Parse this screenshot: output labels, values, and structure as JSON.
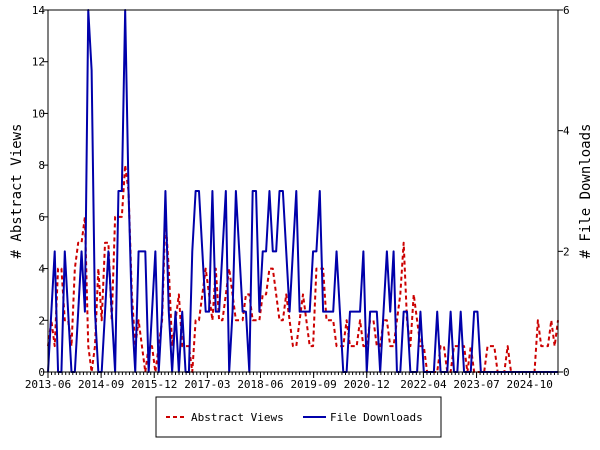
{
  "chart_data": {
    "type": "line",
    "ylabel_left": "# Abstract Views",
    "ylabel_right": "# File Downloads",
    "ylim_left": [
      0,
      14
    ],
    "ylim_right": [
      0,
      6
    ],
    "yticks_left": [
      "0",
      "2",
      "4",
      "6",
      "8",
      "10",
      "12",
      "14"
    ],
    "yticks_right": [
      "0",
      "2",
      "4",
      "6"
    ],
    "xticks": [
      "2013-06",
      "2014-09",
      "2015-12",
      "2017-03",
      "2018-06",
      "2019-09",
      "2020-12",
      "2022-04",
      "2023-07",
      "2024-10"
    ],
    "x_start": "2013-06",
    "x_end": "2025-06",
    "legend_position": "bottom",
    "series": [
      {
        "name": "Abstract Views",
        "axis": "left",
        "color": "#cc0000",
        "style": "dashed",
        "values": [
          1,
          2,
          1,
          4,
          4,
          2,
          2,
          1,
          4,
          5,
          5,
          6,
          1,
          0,
          1,
          4,
          2,
          5,
          5,
          2,
          6,
          6,
          6,
          8,
          7,
          3,
          1,
          2,
          1,
          0,
          1,
          1,
          0,
          1,
          2,
          6,
          4,
          1,
          2,
          3,
          1,
          1,
          1,
          0,
          2,
          2,
          3,
          4,
          3,
          2,
          4,
          2,
          2,
          3,
          4,
          3,
          2,
          2,
          2,
          3,
          3,
          2,
          2,
          2,
          3,
          3,
          4,
          4,
          3,
          2,
          2,
          3,
          2,
          1,
          1,
          2,
          3,
          2,
          1,
          1,
          4,
          4,
          4,
          2,
          2,
          2,
          1,
          1,
          1,
          2,
          1,
          1,
          1,
          2,
          1,
          1,
          2,
          2,
          1,
          1,
          2,
          2,
          1,
          1,
          2,
          3,
          5,
          2,
          1,
          3,
          2,
          1,
          1,
          0,
          0,
          0,
          0,
          1,
          1,
          0,
          0,
          1,
          1,
          1,
          1,
          0,
          1,
          0,
          0,
          0,
          0,
          1,
          1,
          1,
          0,
          0,
          0,
          1,
          0,
          0,
          0,
          0,
          0,
          0,
          0,
          0,
          2,
          1,
          1,
          1,
          2,
          1,
          2
        ]
      },
      {
        "name": "File Downloads",
        "axis": "right",
        "color": "#0000aa",
        "style": "solid",
        "values": [
          0,
          1,
          2,
          0,
          0,
          2,
          1,
          0,
          0,
          1,
          2,
          1,
          6,
          5,
          1,
          0,
          0,
          1,
          2,
          1,
          0,
          3,
          3,
          6,
          3,
          1,
          0,
          2,
          2,
          2,
          0,
          1,
          2,
          0,
          1,
          3,
          1,
          0,
          1,
          0,
          1,
          0,
          0,
          2,
          3,
          3,
          2,
          1,
          1,
          3,
          1,
          1,
          2,
          3,
          0,
          1,
          3,
          2,
          1,
          1,
          0,
          3,
          3,
          1,
          2,
          2,
          3,
          2,
          2,
          3,
          3,
          2,
          1,
          2,
          3,
          1,
          1,
          1,
          1,
          2,
          2,
          3,
          1,
          1,
          1,
          1,
          2,
          1,
          0,
          0,
          1,
          1,
          1,
          1,
          2,
          0,
          1,
          1,
          1,
          0,
          1,
          2,
          1,
          2,
          0,
          0,
          1,
          1,
          0,
          0,
          0,
          1,
          0,
          0,
          0,
          0,
          1,
          0,
          0,
          0,
          1,
          0,
          0,
          1,
          0,
          0,
          0,
          1,
          1,
          0,
          0,
          0,
          0,
          0,
          0,
          0,
          0,
          0,
          0,
          0,
          0,
          0,
          0,
          0,
          0,
          0,
          0,
          0,
          0,
          0,
          0,
          0,
          0
        ]
      }
    ]
  }
}
